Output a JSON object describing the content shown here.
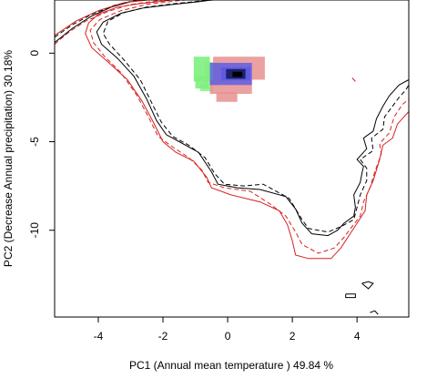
{
  "colors": {
    "black": "#000000",
    "red": "#d62020",
    "green": "#7ef07e",
    "blue": "#5a5ae6",
    "pink": "#e89090",
    "core": "#1a1a5c"
  },
  "chart_data": {
    "type": "scatter",
    "title": "",
    "xlabel": "PC1 (Annual mean temperature ) 49.84 %",
    "ylabel": "PC2 (Decrease Annual precipitation) 30.18%",
    "xlim": [
      -5.35,
      5.6
    ],
    "ylim": [
      -14.9,
      3.0
    ],
    "x_ticks": [
      -4,
      -2,
      0,
      2,
      4
    ],
    "y_ticks": [
      0,
      -5,
      -10
    ],
    "grid": false,
    "legend": "none",
    "series": [
      {
        "kind": "contour",
        "color": "black",
        "dash": "solid",
        "points": [
          [
            -5.35,
            0.6
          ],
          [
            -4.8,
            1.4
          ],
          [
            -4.2,
            2.1
          ],
          [
            -3.6,
            2.6
          ],
          [
            -3.0,
            2.9
          ],
          [
            -2.2,
            3.05
          ],
          [
            -1.2,
            3.05
          ],
          [
            -0.3,
            3.05
          ],
          [
            -0.9,
            2.9
          ],
          [
            -1.7,
            2.75
          ],
          [
            -2.6,
            2.55
          ],
          [
            -3.3,
            2.25
          ],
          [
            -3.85,
            1.75
          ],
          [
            -4.05,
            1.2
          ],
          [
            -3.9,
            0.5
          ],
          [
            -3.4,
            -0.3
          ],
          [
            -2.9,
            -1.3
          ],
          [
            -2.5,
            -2.6
          ],
          [
            -2.2,
            -3.8
          ],
          [
            -1.9,
            -4.6
          ],
          [
            -1.5,
            -5.0
          ],
          [
            -0.9,
            -5.6
          ],
          [
            -0.5,
            -6.7
          ],
          [
            -0.3,
            -7.4
          ],
          [
            0.3,
            -7.6
          ],
          [
            1.0,
            -7.7
          ],
          [
            1.8,
            -8.1
          ],
          [
            2.1,
            -8.8
          ],
          [
            2.3,
            -9.6
          ],
          [
            2.6,
            -10.2
          ],
          [
            3.1,
            -10.3
          ],
          [
            3.4,
            -10.0
          ],
          [
            3.6,
            -9.6
          ],
          [
            3.9,
            -9.2
          ],
          [
            3.95,
            -8.7
          ],
          [
            3.9,
            -8.0
          ],
          [
            4.1,
            -7.3
          ],
          [
            4.15,
            -6.8
          ],
          [
            4.2,
            -6.4
          ],
          [
            4.0,
            -6.0
          ],
          [
            4.3,
            -5.4
          ],
          [
            4.2,
            -4.8
          ],
          [
            4.5,
            -4.4
          ],
          [
            4.6,
            -3.7
          ],
          [
            4.8,
            -3.0
          ],
          [
            5.0,
            -2.4
          ],
          [
            5.3,
            -1.8
          ],
          [
            5.6,
            -1.5
          ]
        ]
      },
      {
        "kind": "contour",
        "color": "black",
        "dash": "dashed",
        "points": [
          [
            -5.35,
            0.9
          ],
          [
            -4.8,
            1.6
          ],
          [
            -4.2,
            2.2
          ],
          [
            -3.5,
            2.7
          ],
          [
            -2.8,
            3.0
          ],
          [
            -1.6,
            3.05
          ],
          [
            -0.6,
            3.05
          ],
          [
            -0.1,
            3.05
          ],
          [
            -0.8,
            2.95
          ],
          [
            -1.6,
            2.8
          ],
          [
            -2.5,
            2.6
          ],
          [
            -3.2,
            2.3
          ],
          [
            -3.7,
            1.8
          ],
          [
            -3.85,
            1.1
          ],
          [
            -3.65,
            0.5
          ],
          [
            -3.2,
            -0.4
          ],
          [
            -2.7,
            -1.5
          ],
          [
            -2.35,
            -2.8
          ],
          [
            -2.05,
            -3.9
          ],
          [
            -1.7,
            -4.7
          ],
          [
            -1.2,
            -5.2
          ],
          [
            -0.7,
            -5.9
          ],
          [
            -0.4,
            -6.8
          ],
          [
            -0.1,
            -7.4
          ],
          [
            0.5,
            -7.5
          ],
          [
            1.1,
            -7.4
          ],
          [
            1.9,
            -8.2
          ],
          [
            2.3,
            -9.4
          ],
          [
            2.5,
            -9.9
          ],
          [
            3.1,
            -10.1
          ],
          [
            3.5,
            -9.8
          ],
          [
            3.9,
            -9.4
          ],
          [
            4.0,
            -8.7
          ],
          [
            4.1,
            -8.0
          ],
          [
            4.3,
            -7.2
          ],
          [
            4.3,
            -6.5
          ],
          [
            4.1,
            -6.0
          ],
          [
            4.5,
            -5.5
          ],
          [
            4.45,
            -4.8
          ],
          [
            4.8,
            -4.3
          ],
          [
            4.85,
            -3.6
          ],
          [
            5.1,
            -3.0
          ],
          [
            5.3,
            -2.5
          ],
          [
            5.5,
            -2.1
          ],
          [
            5.6,
            -1.8
          ]
        ]
      },
      {
        "kind": "contour",
        "color": "red",
        "dash": "solid",
        "points": [
          [
            -5.35,
            1.0
          ],
          [
            -4.7,
            1.8
          ],
          [
            -4.0,
            2.4
          ],
          [
            -3.2,
            2.85
          ],
          [
            -2.3,
            3.05
          ],
          [
            -1.6,
            3.05
          ],
          [
            -1.9,
            2.95
          ],
          [
            -2.7,
            2.8
          ],
          [
            -3.4,
            2.6
          ],
          [
            -4.0,
            2.2
          ],
          [
            -4.3,
            1.7
          ],
          [
            -4.4,
            1.1
          ],
          [
            -4.2,
            0.3
          ],
          [
            -3.7,
            -0.5
          ],
          [
            -3.1,
            -1.5
          ],
          [
            -2.65,
            -2.7
          ],
          [
            -2.3,
            -3.9
          ],
          [
            -2.0,
            -5.0
          ],
          [
            -1.6,
            -5.6
          ],
          [
            -1.05,
            -6.1
          ],
          [
            -0.65,
            -7.0
          ],
          [
            -0.5,
            -7.6
          ],
          [
            0.1,
            -8.0
          ],
          [
            1.0,
            -8.4
          ],
          [
            1.6,
            -8.9
          ],
          [
            1.85,
            -9.7
          ],
          [
            2.0,
            -10.6
          ],
          [
            2.1,
            -11.4
          ],
          [
            2.5,
            -11.6
          ],
          [
            3.2,
            -11.6
          ],
          [
            3.5,
            -11.0
          ],
          [
            3.75,
            -10.3
          ],
          [
            4.0,
            -9.6
          ],
          [
            4.25,
            -8.9
          ],
          [
            4.3,
            -8.0
          ],
          [
            4.5,
            -7.2
          ],
          [
            4.7,
            -6.0
          ],
          [
            4.8,
            -5.2
          ],
          [
            5.1,
            -4.8
          ],
          [
            5.25,
            -4.0
          ],
          [
            5.6,
            -3.3
          ]
        ]
      },
      {
        "kind": "contour",
        "color": "red",
        "dash": "dashed",
        "points": [
          [
            -5.35,
            0.5
          ],
          [
            -4.9,
            1.2
          ],
          [
            -4.4,
            1.8
          ],
          [
            -3.7,
            2.35
          ],
          [
            -3.0,
            2.75
          ],
          [
            -2.0,
            3.0
          ],
          [
            -1.0,
            3.05
          ],
          [
            -1.6,
            2.95
          ],
          [
            -2.5,
            2.75
          ],
          [
            -3.3,
            2.4
          ],
          [
            -3.95,
            1.9
          ],
          [
            -4.25,
            1.3
          ],
          [
            -4.15,
            0.6
          ],
          [
            -3.8,
            -0.2
          ],
          [
            -3.3,
            -1.1
          ],
          [
            -2.8,
            -2.4
          ],
          [
            -2.45,
            -3.6
          ],
          [
            -2.15,
            -4.7
          ],
          [
            -1.7,
            -5.3
          ],
          [
            -1.2,
            -5.9
          ],
          [
            -0.8,
            -6.6
          ],
          [
            -0.6,
            -7.3
          ],
          [
            -0.1,
            -7.6
          ],
          [
            0.7,
            -7.8
          ],
          [
            1.3,
            -8.5
          ],
          [
            1.8,
            -9.2
          ],
          [
            2.1,
            -10.1
          ],
          [
            2.3,
            -10.8
          ],
          [
            2.8,
            -11.3
          ],
          [
            3.3,
            -11.0
          ],
          [
            3.6,
            -10.4
          ],
          [
            3.8,
            -9.9
          ],
          [
            4.1,
            -9.2
          ],
          [
            4.2,
            -8.4
          ],
          [
            4.4,
            -7.6
          ],
          [
            4.55,
            -6.7
          ],
          [
            4.75,
            -5.7
          ],
          [
            4.7,
            -5.1
          ],
          [
            5.0,
            -4.5
          ],
          [
            5.15,
            -3.6
          ],
          [
            5.4,
            -2.9
          ],
          [
            5.6,
            -2.6
          ]
        ]
      },
      {
        "kind": "density",
        "cells": [
          {
            "x": -1.05,
            "y": -0.2,
            "w": 0.5,
            "h": 1.4,
            "color": "green",
            "opacity": 0.9
          },
          {
            "x": -1.0,
            "y": -1.3,
            "w": 0.4,
            "h": 0.7,
            "color": "green",
            "opacity": 0.9
          },
          {
            "x": -0.7,
            "y": -0.5,
            "w": 0.5,
            "h": 1.3,
            "color": "green",
            "opacity": 0.75
          },
          {
            "x": -0.85,
            "y": -1.75,
            "w": 0.4,
            "h": 0.4,
            "color": "green",
            "opacity": 0.8
          },
          {
            "x": -0.45,
            "y": -0.2,
            "w": 1.6,
            "h": 1.3,
            "color": "pink",
            "opacity": 0.85
          },
          {
            "x": -0.55,
            "y": -1.5,
            "w": 1.3,
            "h": 0.8,
            "color": "pink",
            "opacity": 0.85
          },
          {
            "x": -0.35,
            "y": -2.2,
            "w": 0.65,
            "h": 0.55,
            "color": "pink",
            "opacity": 0.85
          },
          {
            "x": -0.55,
            "y": -0.55,
            "w": 1.3,
            "h": 1.25,
            "color": "blue",
            "opacity": 0.8
          },
          {
            "x": -0.2,
            "y": -0.8,
            "w": 0.9,
            "h": 0.75,
            "color": "blue",
            "opacity": 0.9
          },
          {
            "x": -0.05,
            "y": -0.9,
            "w": 0.6,
            "h": 0.55,
            "color": "core",
            "opacity": 0.9
          },
          {
            "x": 0.15,
            "y": -1.05,
            "w": 0.3,
            "h": 0.3,
            "color": "black",
            "opacity": 0.95
          }
        ]
      },
      {
        "kind": "contour",
        "color": "black",
        "dash": "solid",
        "points": [
          [
            4.15,
            -13.0
          ],
          [
            4.35,
            -12.9
          ],
          [
            4.5,
            -13.0
          ],
          [
            4.35,
            -13.3
          ],
          [
            4.15,
            -13.0
          ]
        ]
      },
      {
        "kind": "contour",
        "color": "black",
        "dash": "solid",
        "points": [
          [
            3.65,
            -13.6
          ],
          [
            3.95,
            -13.6
          ],
          [
            3.95,
            -13.8
          ],
          [
            3.65,
            -13.8
          ],
          [
            3.65,
            -13.6
          ]
        ]
      },
      {
        "kind": "contour",
        "color": "black",
        "dash": "solid",
        "points": [
          [
            4.4,
            -14.65
          ],
          [
            4.55,
            -14.55
          ],
          [
            4.65,
            -14.75
          ]
        ]
      },
      {
        "kind": "contour",
        "color": "red",
        "dash": "solid",
        "points": [
          [
            3.85,
            -1.4
          ],
          [
            3.95,
            -1.6
          ]
        ]
      }
    ]
  }
}
